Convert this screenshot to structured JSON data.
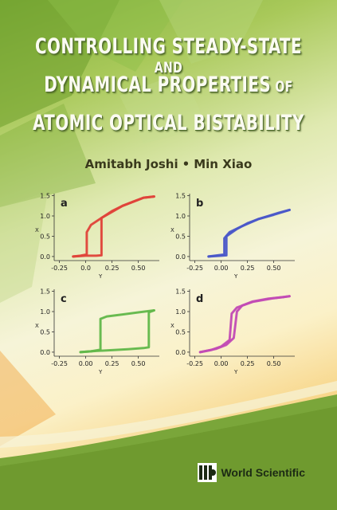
{
  "colors": {
    "title_text": "#fbfbf2",
    "trace_a": "#e0443a",
    "trace_b": "#4a58c9",
    "trace_c": "#62b84a",
    "trace_d": "#c24bb5",
    "green_band": "#6f9a2f"
  },
  "title": {
    "line1_big": "CONTROLLING STEADY-STATE",
    "line1_small": " AND",
    "line2_big": "DYNAMICAL PROPERTIES",
    "line2_small": " OF",
    "line3_big": "ATOMIC OPTICAL BISTABILITY"
  },
  "authors": {
    "author1": "Amitabh Joshi",
    "separator": "•",
    "author2": "Min Xiao"
  },
  "publisher": {
    "name": "World Scientific",
    "logo_icon": "world-scientific-logo-icon"
  },
  "chart_data": [
    {
      "type": "line",
      "panel": "a",
      "xlabel": "Y",
      "ylabel": "X",
      "xticks": [
        "-0.25",
        "0.0",
        "0.25",
        "0.50"
      ],
      "yticks": [
        "0.0",
        "0.5",
        "1.0",
        "1.5"
      ],
      "xlim": [
        -0.3,
        0.7
      ],
      "ylim": [
        -0.1,
        1.55
      ],
      "series": [
        {
          "x": [
            -0.12,
            0.0,
            0.1,
            0.15,
            0.15,
            0.25,
            0.35,
            0.45,
            0.55,
            0.65
          ],
          "y": [
            0.0,
            0.02,
            0.02,
            0.03,
            0.95,
            1.12,
            1.25,
            1.35,
            1.45,
            1.48
          ]
        },
        {
          "x": [
            0.65,
            0.55,
            0.45,
            0.35,
            0.25,
            0.15,
            0.05,
            0.01,
            0.01,
            -0.05,
            -0.12
          ],
          "y": [
            1.48,
            1.45,
            1.35,
            1.25,
            1.1,
            0.95,
            0.78,
            0.6,
            0.05,
            0.02,
            0.0
          ]
        }
      ]
    },
    {
      "type": "line",
      "panel": "b",
      "xlabel": "Y",
      "ylabel": "X",
      "xticks": [
        "-0.25",
        "0.00",
        "0.25",
        "0.50"
      ],
      "yticks": [
        "0.0",
        "0.5",
        "1.0",
        "1.5"
      ],
      "xlim": [
        -0.3,
        0.7
      ],
      "ylim": [
        -0.1,
        1.55
      ],
      "series": [
        {
          "x": [
            -0.12,
            0.0,
            0.05,
            0.05,
            0.15,
            0.25,
            0.35,
            0.45,
            0.55,
            0.65
          ],
          "y": [
            0.0,
            0.02,
            0.03,
            0.5,
            0.68,
            0.82,
            0.92,
            1.0,
            1.08,
            1.15
          ]
        },
        {
          "x": [
            0.65,
            0.5,
            0.35,
            0.2,
            0.08,
            0.03,
            0.03,
            -0.12
          ],
          "y": [
            1.15,
            1.03,
            0.92,
            0.75,
            0.6,
            0.45,
            0.05,
            0.0
          ]
        }
      ]
    },
    {
      "type": "line",
      "panel": "c",
      "xlabel": "Y",
      "ylabel": "X",
      "xticks": [
        "-0.25",
        "0.00",
        "0.25",
        "0.50"
      ],
      "yticks": [
        "0.0",
        "0.5",
        "1.0",
        "1.5"
      ],
      "xlim": [
        -0.3,
        0.7
      ],
      "ylim": [
        -0.1,
        1.55
      ],
      "series": [
        {
          "x": [
            -0.05,
            0.1,
            0.25,
            0.4,
            0.55,
            0.6,
            0.6,
            0.65
          ],
          "y": [
            0.0,
            0.03,
            0.05,
            0.07,
            0.1,
            0.12,
            0.98,
            1.03
          ]
        },
        {
          "x": [
            0.65,
            0.5,
            0.35,
            0.2,
            0.14,
            0.14,
            0.05,
            -0.05
          ],
          "y": [
            1.03,
            0.98,
            0.93,
            0.88,
            0.82,
            0.06,
            0.02,
            0.0
          ]
        }
      ]
    },
    {
      "type": "line",
      "panel": "d",
      "xlabel": "Y",
      "ylabel": "X",
      "xticks": [
        "-0.25",
        "0.00",
        "0.25",
        "0.50"
      ],
      "yticks": [
        "0.0",
        "0.5",
        "1.0",
        "1.5"
      ],
      "xlim": [
        -0.3,
        0.7
      ],
      "ylim": [
        -0.1,
        1.55
      ],
      "series": [
        {
          "x": [
            -0.2,
            -0.05,
            0.05,
            0.12,
            0.15,
            0.2,
            0.3,
            0.45,
            0.6,
            0.65
          ],
          "y": [
            0.0,
            0.08,
            0.18,
            0.35,
            1.0,
            1.15,
            1.25,
            1.32,
            1.36,
            1.38
          ]
        },
        {
          "x": [
            0.65,
            0.5,
            0.3,
            0.15,
            0.1,
            0.08,
            0.0,
            -0.1,
            -0.2
          ],
          "y": [
            1.38,
            1.33,
            1.24,
            1.1,
            0.95,
            0.3,
            0.14,
            0.05,
            0.0
          ]
        }
      ]
    }
  ]
}
